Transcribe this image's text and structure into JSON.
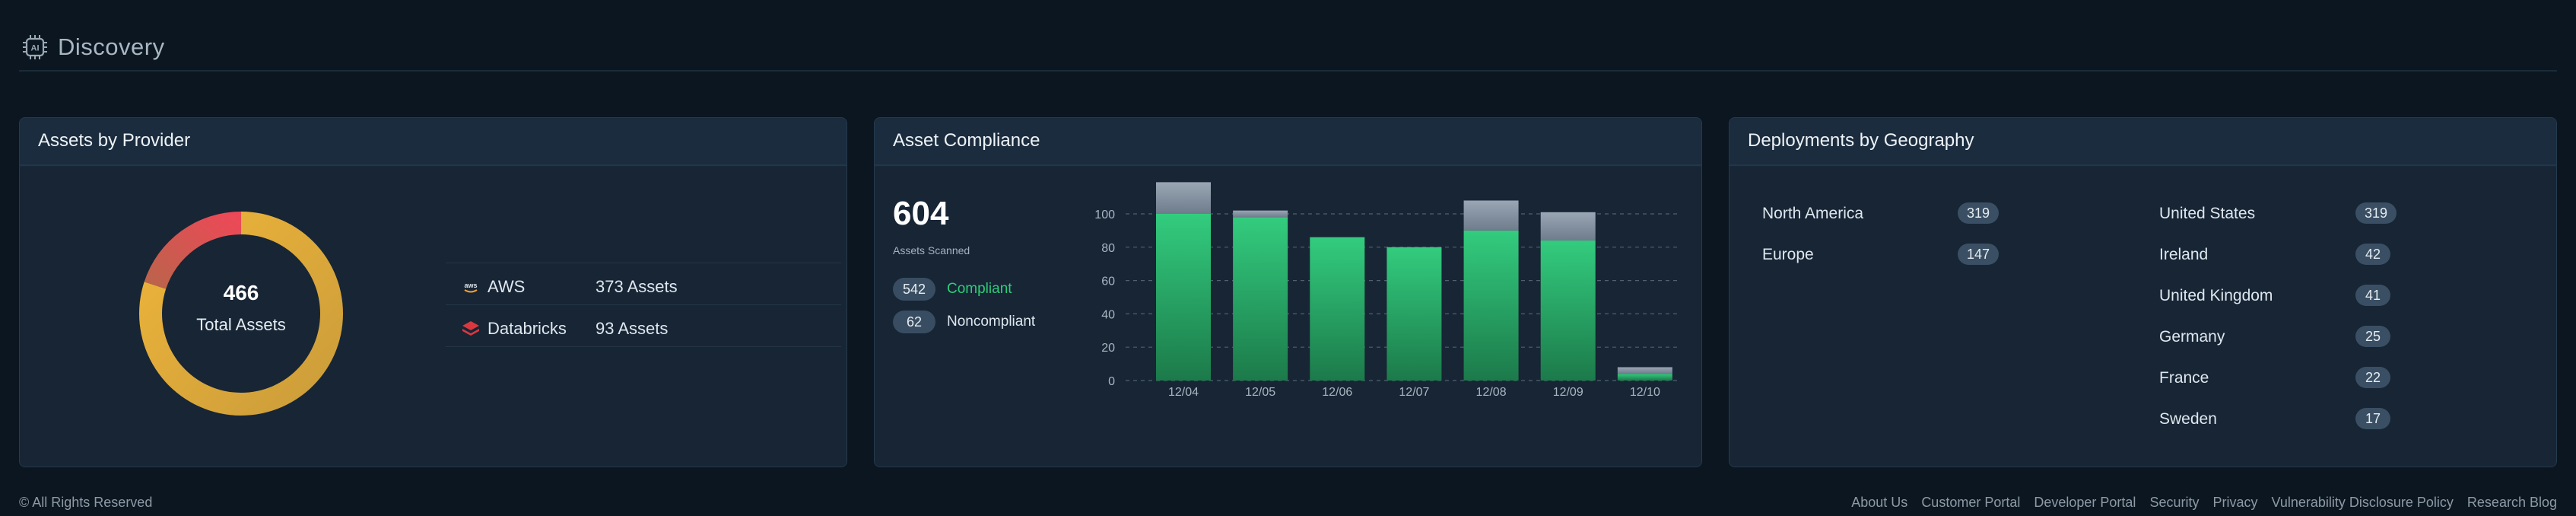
{
  "header": {
    "title": "Discovery",
    "icon": "ai-chip-icon"
  },
  "providers_card": {
    "title": "Assets by Provider",
    "total": "466",
    "total_label": "Total Assets",
    "providers": [
      {
        "name": "AWS",
        "value": "373 Assets",
        "count": 373,
        "icon": "aws-icon",
        "color": "#e0a83b"
      },
      {
        "name": "Databricks",
        "value": "93 Assets",
        "count": 93,
        "icon": "databricks-icon",
        "color": "#e24b55"
      }
    ]
  },
  "compliance_card": {
    "title": "Asset Compliance",
    "scanned": "604",
    "scanned_label": "Assets Scanned",
    "compliant_count": "542",
    "compliant_label": "Compliant",
    "noncompliant_count": "62",
    "noncompliant_label": "Noncompliant",
    "colors": {
      "compliant": "#2ecc7a",
      "noncompliant": "#8a97a6"
    }
  },
  "chart_data": {
    "type": "bar",
    "stacked": true,
    "categories": [
      "12/04",
      "12/05",
      "12/06",
      "12/07",
      "12/08",
      "12/09",
      "12/10"
    ],
    "series": [
      {
        "name": "Compliant",
        "values": [
          100,
          98,
          86,
          80,
          90,
          84,
          4
        ]
      },
      {
        "name": "Noncompliant",
        "values": [
          19,
          4,
          0,
          0,
          18,
          17,
          4
        ]
      }
    ],
    "yticks": [
      0,
      20,
      40,
      60,
      80,
      100
    ],
    "ylim": [
      0,
      120
    ],
    "grid": true
  },
  "geo_card": {
    "title": "Deployments by Geography",
    "regions": [
      {
        "name": "North America",
        "count": "319"
      },
      {
        "name": "Europe",
        "count": "147"
      }
    ],
    "countries": [
      {
        "name": "United States",
        "count": "319"
      },
      {
        "name": "Ireland",
        "count": "42"
      },
      {
        "name": "United Kingdom",
        "count": "41"
      },
      {
        "name": "Germany",
        "count": "25"
      },
      {
        "name": "France",
        "count": "22"
      },
      {
        "name": "Sweden",
        "count": "17"
      }
    ]
  },
  "footer": {
    "copyright": "© All Rights Reserved",
    "links": [
      "About Us",
      "Customer Portal",
      "Developer Portal",
      "Security",
      "Privacy",
      "Vulnerability Disclosure Policy",
      "Research Blog"
    ]
  }
}
